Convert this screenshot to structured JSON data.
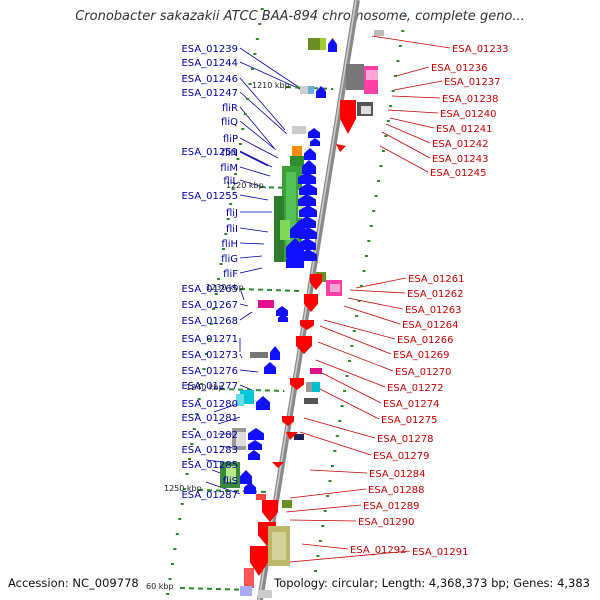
{
  "title": "Cronobacter sakazakii ATCC BAA-894 chromosome, complete geno...",
  "accession": "Accession: NC_009778",
  "topology": "Topology: circular; Length: 4,368,373 bp; Genes: 4,383",
  "colors": {
    "left_labels": "#0000aa",
    "right_labels": "#cc0000",
    "backbone": "#888888",
    "forward_gene": "#1010ff",
    "reverse_gene": "#ff0000",
    "tick": "#2a8a2a"
  },
  "scale_labels": [
    "1210 kbp",
    "1220 kbp",
    "1230 kbp",
    "1240 kbp",
    "1250 kbp",
    "60 kbp"
  ],
  "left_genes": [
    "ESA_01239",
    "ESA_01244",
    "ESA_01246",
    "ESA_01247",
    "fliR",
    "fliQ",
    "fliP",
    "ESA_01251",
    "fliN",
    "fliM",
    "fliL",
    "ESA_01255",
    "fliJ",
    "fliI",
    "fliH",
    "fliG",
    "fliF",
    "ESA_01265",
    "ESA_01267",
    "ESA_01268",
    "ESA_01271",
    "ESA_01273",
    "ESA_01276",
    "ESA_01277",
    "ESA_01280",
    "ESA_01281",
    "ESA_01282",
    "ESA_01283",
    "ESA_01285",
    "fliS",
    "ESA_01287"
  ],
  "right_genes": [
    "ESA_01233",
    "ESA_01236",
    "ESA_01237",
    "ESA_01238",
    "ESA_01240",
    "ESA_01241",
    "ESA_01242",
    "ESA_01243",
    "ESA_01245",
    "ESA_01261",
    "ESA_01262",
    "ESA_01263",
    "ESA_01264",
    "ESA_01266",
    "ESA_01269",
    "ESA_01270",
    "ESA_01272",
    "ESA_01274",
    "ESA_01275",
    "ESA_01278",
    "ESA_01279",
    "ESA_01284",
    "ESA_01288",
    "ESA_01289",
    "ESA_01290",
    "ESA_01292",
    "ESA_01291"
  ]
}
